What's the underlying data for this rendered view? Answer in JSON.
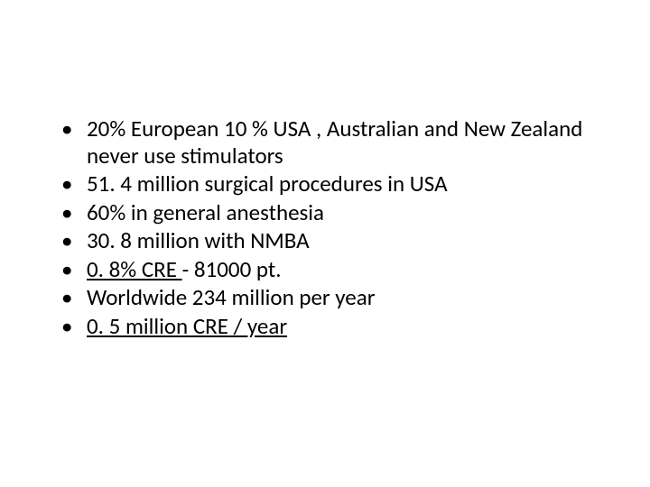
{
  "slide": {
    "background_color": "#ffffff",
    "text_color": "#000000",
    "font_family": "Calibri",
    "font_size_pt": 25,
    "bullets": [
      {
        "text": "20% European 10 % USA , Australian and New Zealand never use stimulators",
        "underline": false
      },
      {
        "text": "51. 4 million surgical procedures in USA",
        "underline": false
      },
      {
        "text": "60% in general anesthesia",
        "underline": false
      },
      {
        "text": "30. 8 million with NMBA",
        "underline": false
      },
      {
        "text_prefix_underline": "0. 8%  CRE ",
        "text_suffix": " - 81000 pt.",
        "underline": "partial"
      },
      {
        "text": "Worldwide 234 million per year",
        "underline": false
      },
      {
        "text": "0. 5 million CRE / year",
        "underline": true
      }
    ]
  }
}
